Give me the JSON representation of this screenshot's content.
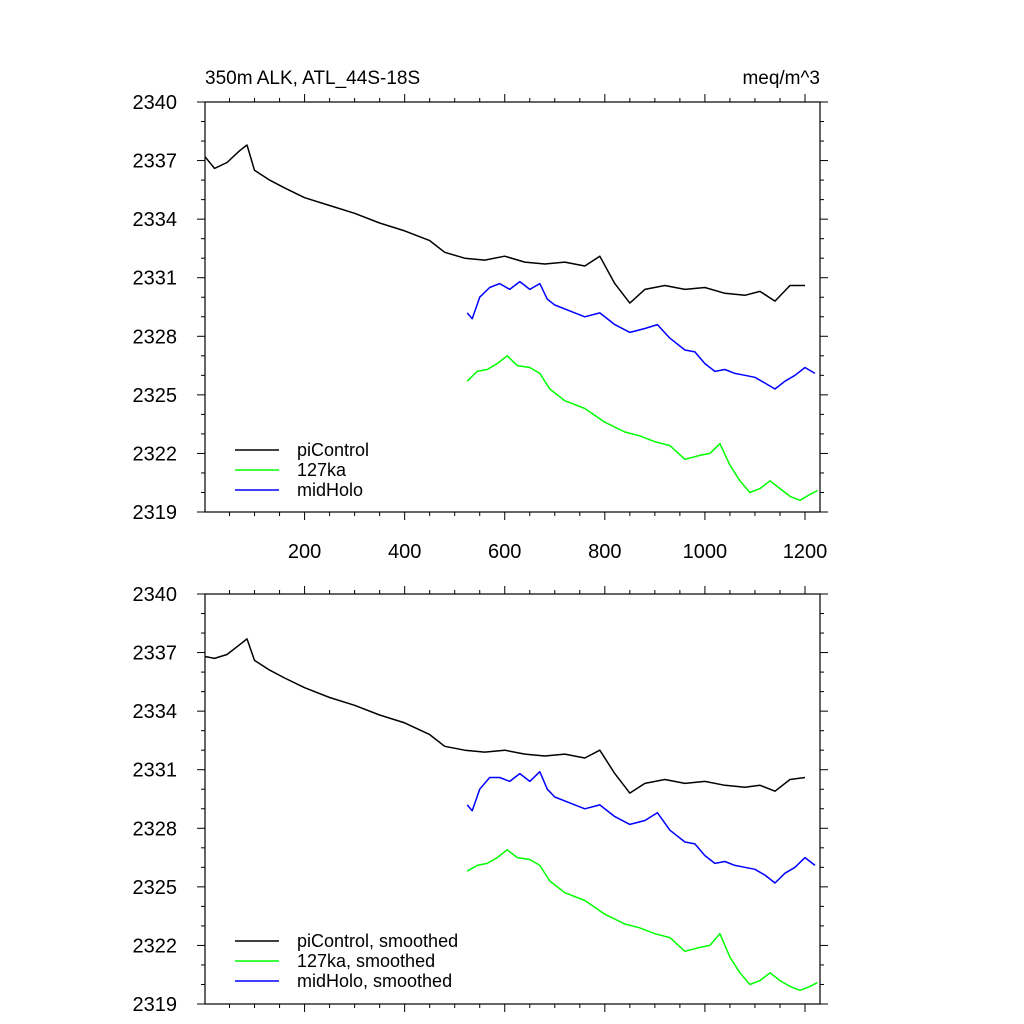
{
  "chart_data": [
    {
      "type": "line",
      "title_left": "350m ALK, ATL_44S-18S",
      "title_right": "meq/m^3",
      "xlim": [
        1,
        1230
      ],
      "ylim": [
        2319,
        2340
      ],
      "x_ticks": [
        200,
        400,
        600,
        800,
        1000,
        1200
      ],
      "x_tick_labels": [
        "200",
        "400",
        "600",
        "800",
        "1000",
        "1200"
      ],
      "y_ticks": [
        2319,
        2322,
        2325,
        2328,
        2331,
        2334,
        2337,
        2340
      ],
      "y_tick_labels": [
        "2319",
        "2322",
        "2325",
        "2328",
        "2331",
        "2334",
        "2337",
        "2340"
      ],
      "legend_position": "bottom-left",
      "series": [
        {
          "name": "piControl",
          "color": "#000000",
          "points": [
            [
              1,
              2337.2
            ],
            [
              20,
              2336.6
            ],
            [
              45,
              2336.9
            ],
            [
              70,
              2337.5
            ],
            [
              85,
              2337.8
            ],
            [
              100,
              2336.5
            ],
            [
              130,
              2336.0
            ],
            [
              160,
              2335.6
            ],
            [
              200,
              2335.1
            ],
            [
              250,
              2334.7
            ],
            [
              300,
              2334.3
            ],
            [
              350,
              2333.8
            ],
            [
              400,
              2333.4
            ],
            [
              450,
              2332.9
            ],
            [
              480,
              2332.3
            ],
            [
              520,
              2332.0
            ],
            [
              560,
              2331.9
            ],
            [
              600,
              2332.1
            ],
            [
              640,
              2331.8
            ],
            [
              680,
              2331.7
            ],
            [
              720,
              2331.8
            ],
            [
              760,
              2331.6
            ],
            [
              790,
              2332.1
            ],
            [
              820,
              2330.7
            ],
            [
              850,
              2329.7
            ],
            [
              880,
              2330.4
            ],
            [
              920,
              2330.6
            ],
            [
              960,
              2330.4
            ],
            [
              1000,
              2330.5
            ],
            [
              1040,
              2330.2
            ],
            [
              1080,
              2330.1
            ],
            [
              1110,
              2330.3
            ],
            [
              1140,
              2329.8
            ],
            [
              1170,
              2330.6
            ],
            [
              1200,
              2330.6
            ]
          ]
        },
        {
          "name": "127ka",
          "color": "#00ff00",
          "points": [
            [
              525,
              2325.7
            ],
            [
              545,
              2326.2
            ],
            [
              565,
              2326.3
            ],
            [
              585,
              2326.6
            ],
            [
              605,
              2327.0
            ],
            [
              625,
              2326.5
            ],
            [
              650,
              2326.4
            ],
            [
              670,
              2326.1
            ],
            [
              690,
              2325.3
            ],
            [
              720,
              2324.7
            ],
            [
              760,
              2324.3
            ],
            [
              800,
              2323.6
            ],
            [
              840,
              2323.1
            ],
            [
              870,
              2322.9
            ],
            [
              900,
              2322.6
            ],
            [
              930,
              2322.4
            ],
            [
              960,
              2321.7
            ],
            [
              990,
              2321.9
            ],
            [
              1010,
              2322.0
            ],
            [
              1030,
              2322.5
            ],
            [
              1050,
              2321.4
            ],
            [
              1070,
              2320.6
            ],
            [
              1090,
              2320.0
            ],
            [
              1110,
              2320.2
            ],
            [
              1130,
              2320.6
            ],
            [
              1150,
              2320.2
            ],
            [
              1170,
              2319.8
            ],
            [
              1190,
              2319.6
            ],
            [
              1210,
              2319.9
            ],
            [
              1225,
              2320.1
            ]
          ]
        },
        {
          "name": "midHolo",
          "color": "#0000ff",
          "points": [
            [
              525,
              2329.2
            ],
            [
              535,
              2328.9
            ],
            [
              550,
              2330.0
            ],
            [
              570,
              2330.5
            ],
            [
              590,
              2330.7
            ],
            [
              610,
              2330.4
            ],
            [
              630,
              2330.8
            ],
            [
              650,
              2330.4
            ],
            [
              670,
              2330.7
            ],
            [
              685,
              2329.9
            ],
            [
              700,
              2329.6
            ],
            [
              730,
              2329.3
            ],
            [
              760,
              2329.0
            ],
            [
              790,
              2329.2
            ],
            [
              820,
              2328.6
            ],
            [
              850,
              2328.2
            ],
            [
              880,
              2328.4
            ],
            [
              905,
              2328.6
            ],
            [
              930,
              2327.9
            ],
            [
              960,
              2327.3
            ],
            [
              980,
              2327.2
            ],
            [
              1000,
              2326.6
            ],
            [
              1020,
              2326.2
            ],
            [
              1040,
              2326.3
            ],
            [
              1060,
              2326.1
            ],
            [
              1080,
              2326.0
            ],
            [
              1100,
              2325.9
            ],
            [
              1120,
              2325.6
            ],
            [
              1140,
              2325.3
            ],
            [
              1160,
              2325.7
            ],
            [
              1180,
              2326.0
            ],
            [
              1200,
              2326.4
            ],
            [
              1220,
              2326.1
            ]
          ]
        }
      ]
    },
    {
      "type": "line",
      "xlim": [
        1,
        1230
      ],
      "ylim": [
        2319,
        2340
      ],
      "x_ticks": [
        200,
        400,
        600,
        800,
        1000,
        1200
      ],
      "y_ticks": [
        2319,
        2322,
        2325,
        2328,
        2331,
        2334,
        2337,
        2340
      ],
      "y_tick_labels": [
        "2319",
        "2322",
        "2325",
        "2328",
        "2331",
        "2334",
        "2337",
        "2340"
      ],
      "legend_position": "bottom-left",
      "series": [
        {
          "name": "piControl, smoothed",
          "color": "#000000",
          "points": [
            [
              1,
              2336.8
            ],
            [
              20,
              2336.7
            ],
            [
              45,
              2336.9
            ],
            [
              70,
              2337.4
            ],
            [
              85,
              2337.7
            ],
            [
              100,
              2336.6
            ],
            [
              130,
              2336.1
            ],
            [
              160,
              2335.7
            ],
            [
              200,
              2335.2
            ],
            [
              250,
              2334.7
            ],
            [
              300,
              2334.3
            ],
            [
              350,
              2333.8
            ],
            [
              400,
              2333.4
            ],
            [
              450,
              2332.8
            ],
            [
              480,
              2332.2
            ],
            [
              520,
              2332.0
            ],
            [
              560,
              2331.9
            ],
            [
              600,
              2332.0
            ],
            [
              640,
              2331.8
            ],
            [
              680,
              2331.7
            ],
            [
              720,
              2331.8
            ],
            [
              760,
              2331.6
            ],
            [
              790,
              2332.0
            ],
            [
              820,
              2330.8
            ],
            [
              850,
              2329.8
            ],
            [
              880,
              2330.3
            ],
            [
              920,
              2330.5
            ],
            [
              960,
              2330.3
            ],
            [
              1000,
              2330.4
            ],
            [
              1040,
              2330.2
            ],
            [
              1080,
              2330.1
            ],
            [
              1110,
              2330.2
            ],
            [
              1140,
              2329.9
            ],
            [
              1170,
              2330.5
            ],
            [
              1200,
              2330.6
            ]
          ]
        },
        {
          "name": "127ka, smoothed",
          "color": "#00ff00",
          "points": [
            [
              525,
              2325.8
            ],
            [
              545,
              2326.1
            ],
            [
              565,
              2326.2
            ],
            [
              585,
              2326.5
            ],
            [
              605,
              2326.9
            ],
            [
              625,
              2326.5
            ],
            [
              650,
              2326.4
            ],
            [
              670,
              2326.1
            ],
            [
              690,
              2325.3
            ],
            [
              720,
              2324.7
            ],
            [
              760,
              2324.3
            ],
            [
              800,
              2323.6
            ],
            [
              840,
              2323.1
            ],
            [
              870,
              2322.9
            ],
            [
              900,
              2322.6
            ],
            [
              930,
              2322.4
            ],
            [
              960,
              2321.7
            ],
            [
              990,
              2321.9
            ],
            [
              1010,
              2322.0
            ],
            [
              1030,
              2322.6
            ],
            [
              1050,
              2321.4
            ],
            [
              1070,
              2320.6
            ],
            [
              1090,
              2320.0
            ],
            [
              1110,
              2320.2
            ],
            [
              1130,
              2320.6
            ],
            [
              1150,
              2320.2
            ],
            [
              1170,
              2319.9
            ],
            [
              1190,
              2319.7
            ],
            [
              1210,
              2319.9
            ],
            [
              1225,
              2320.1
            ]
          ]
        },
        {
          "name": "midHolo, smoothed",
          "color": "#0000ff",
          "points": [
            [
              525,
              2329.2
            ],
            [
              535,
              2328.9
            ],
            [
              550,
              2330.0
            ],
            [
              570,
              2330.6
            ],
            [
              590,
              2330.6
            ],
            [
              610,
              2330.4
            ],
            [
              630,
              2330.8
            ],
            [
              650,
              2330.4
            ],
            [
              670,
              2330.9
            ],
            [
              685,
              2330.0
            ],
            [
              700,
              2329.6
            ],
            [
              730,
              2329.3
            ],
            [
              760,
              2329.0
            ],
            [
              790,
              2329.2
            ],
            [
              820,
              2328.6
            ],
            [
              850,
              2328.2
            ],
            [
              880,
              2328.4
            ],
            [
              905,
              2328.8
            ],
            [
              930,
              2327.9
            ],
            [
              960,
              2327.3
            ],
            [
              980,
              2327.2
            ],
            [
              1000,
              2326.6
            ],
            [
              1020,
              2326.2
            ],
            [
              1040,
              2326.3
            ],
            [
              1060,
              2326.1
            ],
            [
              1080,
              2326.0
            ],
            [
              1100,
              2325.9
            ],
            [
              1120,
              2325.6
            ],
            [
              1140,
              2325.2
            ],
            [
              1160,
              2325.7
            ],
            [
              1180,
              2326.0
            ],
            [
              1200,
              2326.5
            ],
            [
              1220,
              2326.1
            ]
          ]
        }
      ]
    }
  ]
}
